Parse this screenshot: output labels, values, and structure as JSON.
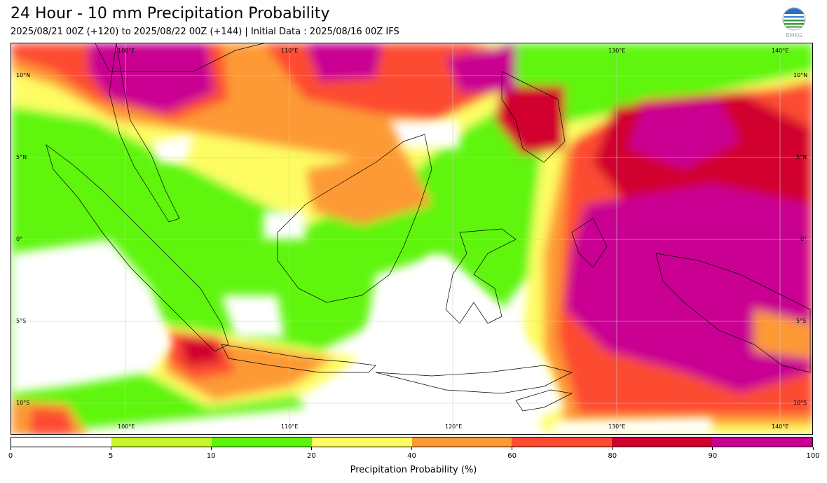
{
  "title": "24 Hour - 10 mm Precipitation Probability",
  "subtitle": "2025/08/21 00Z (+120) to 2025/08/22 00Z (+144) | Initial Data : 2025/08/16 00Z IFS",
  "logo": {
    "icon": "bmkg-logo-icon",
    "text": "BMKG"
  },
  "map": {
    "extent": {
      "lon_min": 93,
      "lon_max": 142,
      "lat_min": -12,
      "lat_max": 12
    },
    "longitude_labels_top": [
      "100°E",
      "110°E",
      "130°E",
      "140°E"
    ],
    "longitude_labels_bottom": [
      "100°E",
      "110°E",
      "120°E",
      "130°E",
      "140°E"
    ],
    "latitude_labels_left": [
      "10°N",
      "5°N",
      "0°",
      "5°S",
      "10°S"
    ],
    "latitude_labels_right": [
      "10°N",
      "5°N",
      "0°",
      "5°S",
      "10°S"
    ]
  },
  "colorbar": {
    "label": "Precipitation Probability (%)",
    "ticks": [
      "0",
      "5",
      "10",
      "20",
      "40",
      "60",
      "80",
      "90",
      "100"
    ],
    "colors": [
      "#ffffff",
      "#c8f52c",
      "#5ef50c",
      "#fdfd63",
      "#fd9a35",
      "#fd4c32",
      "#d2002f",
      "#c90092"
    ]
  }
}
